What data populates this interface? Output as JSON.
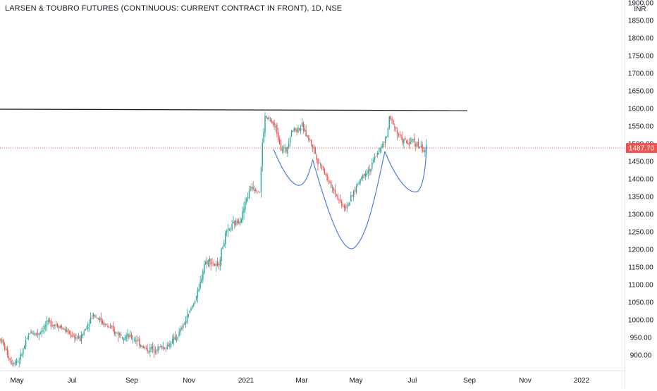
{
  "chart_data": {
    "type": "candlestick",
    "title": "LARSEN & TOUBRO FUTURES (CONTINUOUS: CURRENT CONTRACT IN FRONT), 1D, NSE",
    "currency": "INR",
    "last_price": "1487.70",
    "last_value": 1487.7,
    "ylim": [
      870,
      1900
    ],
    "y_ticks": [
      "900.00",
      "950.00",
      "1000.00",
      "1050.00",
      "1100.00",
      "1150.00",
      "1200.00",
      "1250.00",
      "1300.00",
      "1350.00",
      "1400.00",
      "1450.00",
      "1500.00",
      "1550.00",
      "1600.00",
      "1650.00",
      "1700.00",
      "1750.00",
      "1800.00",
      "1850.00",
      "1900.00"
    ],
    "x_ticks": [
      "May",
      "Jul",
      "Sep",
      "Nov",
      "2021",
      "Mar",
      "May",
      "Jul",
      "Sep",
      "Nov",
      "2022"
    ],
    "trend_line": {
      "y": 1598
    },
    "price_path": [
      [
        0,
        945
      ],
      [
        8,
        880
      ],
      [
        14,
        885
      ],
      [
        22,
        965
      ],
      [
        28,
        960
      ],
      [
        36,
        992
      ],
      [
        44,
        985
      ],
      [
        52,
        960
      ],
      [
        60,
        945
      ],
      [
        70,
        1018
      ],
      [
        78,
        990
      ],
      [
        86,
        965
      ],
      [
        94,
        955
      ],
      [
        102,
        945
      ],
      [
        110,
        915
      ],
      [
        118,
        920
      ],
      [
        126,
        925
      ],
      [
        134,
        955
      ],
      [
        141,
        1005
      ],
      [
        146,
        1050
      ],
      [
        150,
        1085
      ],
      [
        154,
        1160
      ],
      [
        158,
        1170
      ],
      [
        164,
        1148
      ],
      [
        170,
        1240
      ],
      [
        176,
        1270
      ],
      [
        182,
        1290
      ],
      [
        186,
        1345
      ],
      [
        190,
        1380
      ],
      [
        194,
        1370
      ],
      [
        196,
        1365
      ],
      [
        198,
        1500
      ],
      [
        200,
        1575
      ],
      [
        204,
        1565
      ],
      [
        208,
        1545
      ],
      [
        212,
        1490
      ],
      [
        216,
        1480
      ],
      [
        220,
        1540
      ],
      [
        224,
        1540
      ],
      [
        228,
        1550
      ],
      [
        232,
        1520
      ],
      [
        236,
        1495
      ],
      [
        240,
        1450
      ],
      [
        244,
        1430
      ],
      [
        248,
        1390
      ],
      [
        252,
        1370
      ],
      [
        256,
        1340
      ],
      [
        260,
        1320
      ],
      [
        264,
        1335
      ],
      [
        268,
        1370
      ],
      [
        272,
        1400
      ],
      [
        276,
        1420
      ],
      [
        280,
        1430
      ],
      [
        284,
        1470
      ],
      [
        288,
        1490
      ],
      [
        292,
        1520
      ],
      [
        294,
        1570
      ],
      [
        297,
        1560
      ],
      [
        300,
        1530
      ],
      [
        304,
        1510
      ],
      [
        308,
        1500
      ],
      [
        312,
        1510
      ],
      [
        316,
        1495
      ],
      [
        320,
        1480
      ],
      [
        322,
        1487.7
      ]
    ]
  }
}
